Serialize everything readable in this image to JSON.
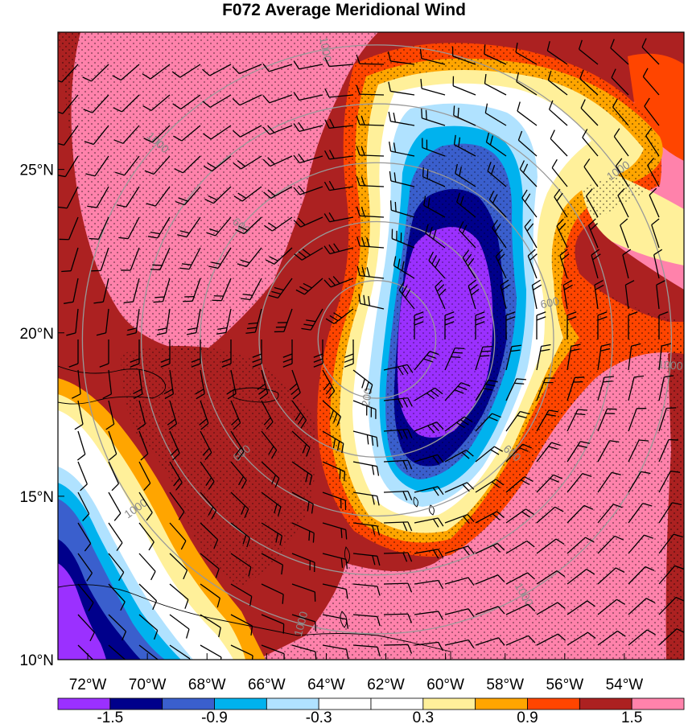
{
  "title": "F072 Average Meridional Wind",
  "map": {
    "lon_labels": [
      "72°W",
      "70°W",
      "68°W",
      "66°W",
      "64°W",
      "62°W",
      "60°W",
      "58°W",
      "56°W",
      "54°W"
    ],
    "lat_labels": [
      "25°N",
      "20°N",
      "15°N",
      "10°N"
    ],
    "lon_range": [
      -73,
      -52
    ],
    "lat_range": [
      10,
      29.2
    ],
    "storm_center": {
      "lon": -62.3,
      "lat": 19.8
    },
    "range_rings_km": [
      200,
      400,
      600,
      800,
      1000
    ],
    "ring_labels": [
      {
        "text": "200",
        "ring_km": 200,
        "bearing_deg": 190
      },
      {
        "text": "600",
        "ring_km": 600,
        "bearing_deg": 130
      },
      {
        "text": "600",
        "ring_km": 600,
        "bearing_deg": 78
      },
      {
        "text": "600",
        "ring_km": 600,
        "bearing_deg": 310
      },
      {
        "text": "600",
        "ring_km": 600,
        "bearing_deg": 230
      },
      {
        "text": "1000",
        "ring_km": 1000,
        "bearing_deg": 350
      },
      {
        "text": "1000",
        "ring_km": 1000,
        "bearing_deg": 55
      },
      {
        "text": "1000",
        "ring_km": 1000,
        "bearing_deg": 95
      },
      {
        "text": "1000",
        "ring_km": 1000,
        "bearing_deg": 150
      },
      {
        "text": "1000",
        "ring_km": 1000,
        "bearing_deg": 195
      },
      {
        "text": "1000",
        "ring_km": 1000,
        "bearing_deg": 235
      },
      {
        "text": "1000",
        "ring_km": 1000,
        "bearing_deg": 312
      }
    ],
    "variable": "meridional wind",
    "stippling": "dots over regions of significance",
    "wind_barbs": true
  },
  "colorbar": {
    "levels": [
      -1.8,
      -1.5,
      -1.2,
      -0.9,
      -0.6,
      -0.3,
      0,
      0.3,
      0.6,
      0.9,
      1.2,
      1.5,
      1.8
    ],
    "colors": [
      "#9b30ff",
      "#00008b",
      "#3a5fcd",
      "#00b2ee",
      "#b0e2ff",
      "#ffffff",
      "#ffffff",
      "#fff09a",
      "#ffa500",
      "#ff4500",
      "#ac2121",
      "#ff82ab"
    ],
    "tick_labels": [
      "-1.5",
      "-0.9",
      "-0.3",
      "0.3",
      "0.9",
      "1.5"
    ],
    "tick_values": [
      -1.5,
      -0.9,
      -0.3,
      0.3,
      0.9,
      1.5
    ]
  }
}
